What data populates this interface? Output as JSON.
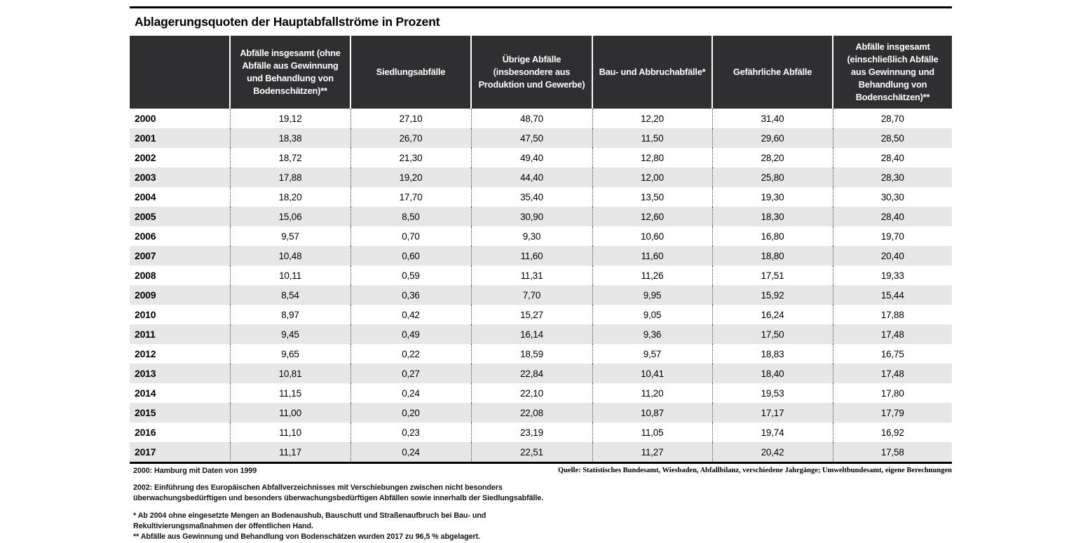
{
  "title": "Ablagerungsquoten der Hauptabfallströme in Prozent",
  "table": {
    "columns": [
      "",
      "Abfälle insgesamt (ohne Abfälle aus Gewinnung und Behandlung von Bodenschätzen)**",
      "Siedlungsabfälle",
      "Übrige Abfälle (insbesondere aus Produktion und Gewerbe)",
      "Bau- und Abbruchabfälle*",
      "Gefährliche Abfälle",
      "Abfälle insgesamt (einschließlich Abfälle aus Gewinnung und Behandlung von Bodenschätzen)**"
    ],
    "rows": [
      {
        "year": "2000",
        "values": [
          "19,12",
          "27,10",
          "48,70",
          "12,20",
          "31,40",
          "28,70"
        ]
      },
      {
        "year": "2001",
        "values": [
          "18,38",
          "26,70",
          "47,50",
          "11,50",
          "29,60",
          "28,50"
        ]
      },
      {
        "year": "2002",
        "values": [
          "18,72",
          "21,30",
          "49,40",
          "12,80",
          "28,20",
          "28,40"
        ]
      },
      {
        "year": "2003",
        "values": [
          "17,88",
          "19,20",
          "44,40",
          "12,00",
          "25,80",
          "28,30"
        ]
      },
      {
        "year": "2004",
        "values": [
          "18,20",
          "17,70",
          "35,40",
          "13,50",
          "19,30",
          "30,30"
        ]
      },
      {
        "year": "2005",
        "values": [
          "15,06",
          "8,50",
          "30,90",
          "12,60",
          "18,30",
          "28,40"
        ]
      },
      {
        "year": "2006",
        "values": [
          "9,57",
          "0,70",
          "9,30",
          "10,60",
          "16,80",
          "19,70"
        ]
      },
      {
        "year": "2007",
        "values": [
          "10,48",
          "0,60",
          "11,60",
          "11,60",
          "18,80",
          "20,40"
        ]
      },
      {
        "year": "2008",
        "values": [
          "10,11",
          "0,59",
          "11,31",
          "11,26",
          "17,51",
          "19,33"
        ]
      },
      {
        "year": "2009",
        "values": [
          "8,54",
          "0,36",
          "7,70",
          "9,95",
          "15,92",
          "15,44"
        ]
      },
      {
        "year": "2010",
        "values": [
          "8,97",
          "0,42",
          "15,27",
          "9,05",
          "16,24",
          "17,88"
        ]
      },
      {
        "year": "2011",
        "values": [
          "9,45",
          "0,49",
          "16,14",
          "9,36",
          "17,50",
          "17,48"
        ]
      },
      {
        "year": "2012",
        "values": [
          "9,65",
          "0,22",
          "18,59",
          "9,57",
          "18,83",
          "16,75"
        ]
      },
      {
        "year": "2013",
        "values": [
          "10,81",
          "0,27",
          "22,84",
          "10,41",
          "18,40",
          "17,48"
        ]
      },
      {
        "year": "2014",
        "values": [
          "11,15",
          "0,24",
          "22,10",
          "11,20",
          "19,53",
          "17,80"
        ]
      },
      {
        "year": "2015",
        "values": [
          "11,00",
          "0,20",
          "22,08",
          "10,87",
          "17,17",
          "17,79"
        ]
      },
      {
        "year": "2016",
        "values": [
          "11,10",
          "0,23",
          "23,19",
          "11,05",
          "19,74",
          "16,92"
        ]
      },
      {
        "year": "2017",
        "values": [
          "11,17",
          "0,24",
          "22,51",
          "11,27",
          "20,42",
          "17,58"
        ]
      }
    ]
  },
  "footnotes": [
    "2000: Hamburg mit Daten von 1999",
    "2002: Einführung des Europäischen Abfallverzeichnisses mit Verschiebungen zwischen nicht besonders überwachungsbedürftigen und besonders überwachungsbedürftigen Abfällen sowie innerhalb der Siedlungsabfälle.",
    "* Ab 2004 ohne eingesetzte Mengen an Bodenaushub, Bauschutt und Straßenaufbruch bei Bau- und Rekultivierungsmaßnahmen der öffentlichen Hand.",
    "** Abfälle aus Gewinnung und Behandlung von Bodenschätzen wurden 2017 zu 96,5 % abgelagert."
  ],
  "source": "Quelle: Statistisches Bundesamt, Wiesbaden, Abfallbilanz,  verschiedene Jahrgänge; Umweltbundesamt, eigene Berechnungen",
  "colors": {
    "header_bg": "#2f2f31",
    "row_alt_bg": "#e7e7e7",
    "rule": "#000000",
    "header_text": "#ffffff"
  },
  "chart_data": {
    "type": "table",
    "title": "Ablagerungsquoten der Hauptabfallströme in Prozent",
    "unit": "Prozent",
    "categories": [
      "2000",
      "2001",
      "2002",
      "2003",
      "2004",
      "2005",
      "2006",
      "2007",
      "2008",
      "2009",
      "2010",
      "2011",
      "2012",
      "2013",
      "2014",
      "2015",
      "2016",
      "2017"
    ],
    "series": [
      {
        "name": "Abfälle insgesamt (ohne Abfälle aus Gewinnung und Behandlung von Bodenschätzen)**",
        "values": [
          19.12,
          18.38,
          18.72,
          17.88,
          18.2,
          15.06,
          9.57,
          10.48,
          10.11,
          8.54,
          8.97,
          9.45,
          9.65,
          10.81,
          11.15,
          11.0,
          11.1,
          11.17
        ]
      },
      {
        "name": "Siedlungsabfälle",
        "values": [
          27.1,
          26.7,
          21.3,
          19.2,
          17.7,
          8.5,
          0.7,
          0.6,
          0.59,
          0.36,
          0.42,
          0.49,
          0.22,
          0.27,
          0.24,
          0.2,
          0.23,
          0.24
        ]
      },
      {
        "name": "Übrige Abfälle (insbesondere aus Produktion und Gewerbe)",
        "values": [
          48.7,
          47.5,
          49.4,
          44.4,
          35.4,
          30.9,
          9.3,
          11.6,
          11.31,
          7.7,
          15.27,
          16.14,
          18.59,
          22.84,
          22.1,
          22.08,
          23.19,
          22.51
        ]
      },
      {
        "name": "Bau- und Abbruchabfälle*",
        "values": [
          12.2,
          11.5,
          12.8,
          12.0,
          13.5,
          12.6,
          10.6,
          11.6,
          11.26,
          9.95,
          9.05,
          9.36,
          9.57,
          10.41,
          11.2,
          10.87,
          11.05,
          11.27
        ]
      },
      {
        "name": "Gefährliche Abfälle",
        "values": [
          31.4,
          29.6,
          28.2,
          25.8,
          19.3,
          18.3,
          16.8,
          18.8,
          17.51,
          15.92,
          16.24,
          17.5,
          18.83,
          18.4,
          19.53,
          17.17,
          19.74,
          20.42
        ]
      },
      {
        "name": "Abfälle insgesamt (einschließlich Abfälle aus Gewinnung und Behandlung von Bodenschätzen)**",
        "values": [
          28.7,
          28.5,
          28.4,
          28.3,
          30.3,
          28.4,
          19.7,
          20.4,
          19.33,
          15.44,
          17.88,
          17.48,
          16.75,
          17.48,
          17.8,
          17.79,
          16.92,
          17.58
        ]
      }
    ]
  }
}
